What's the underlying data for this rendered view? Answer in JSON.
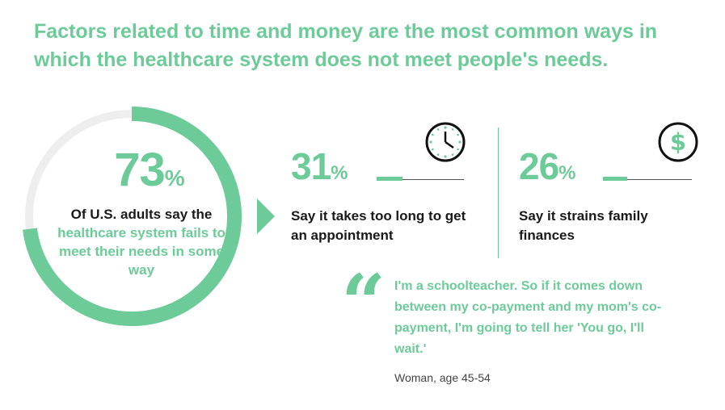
{
  "title": "Factors related to time and money are the most common ways in which the healthcare system does not meet people's needs.",
  "main_stat": {
    "value": "73",
    "unit": "%",
    "progress": 0.73,
    "caption_lead": "Of U.S. adults say the",
    "caption_highlight": "healthcare system fails to meet their needs in some way"
  },
  "stats": [
    {
      "value": "31",
      "unit": "%",
      "caption": "Say it takes too long to get an appointment",
      "icon": "clock-icon"
    },
    {
      "value": "26",
      "unit": "%",
      "caption": "Say it strains family finances",
      "icon": "dollar-icon"
    }
  ],
  "quote": {
    "mark": "“",
    "text": "I'm a schoolteacher. So if it comes down between my co-payment and my mom's co-payment, I'm going to tell her 'You go, I'll wait.'",
    "attribution": "Woman, age 45-54"
  },
  "colors": {
    "accent": "#6ccb98",
    "track": "#eeeeee",
    "text": "#1a1a1a"
  }
}
